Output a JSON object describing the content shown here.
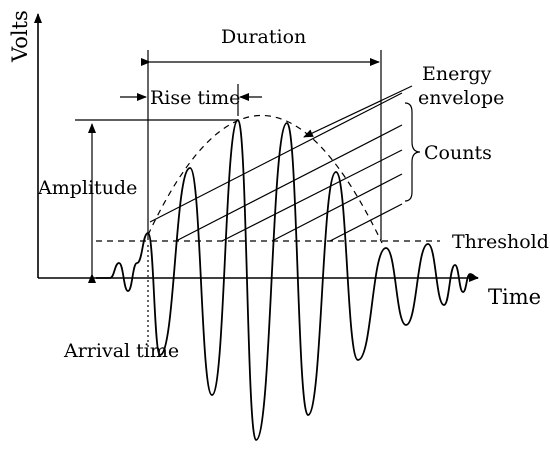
{
  "diagram": {
    "labels": {
      "y_axis": "Volts",
      "x_axis": "Time",
      "duration": "Duration",
      "rise_time": "Rise time",
      "energy_line1": "Energy",
      "energy_line2": "envelope",
      "counts": "Counts",
      "amplitude": "Amplitude",
      "threshold": "Threshold",
      "arrival_time": "Arrival time"
    },
    "colors": {
      "ink": "#000000",
      "background": "#ffffff"
    }
  }
}
